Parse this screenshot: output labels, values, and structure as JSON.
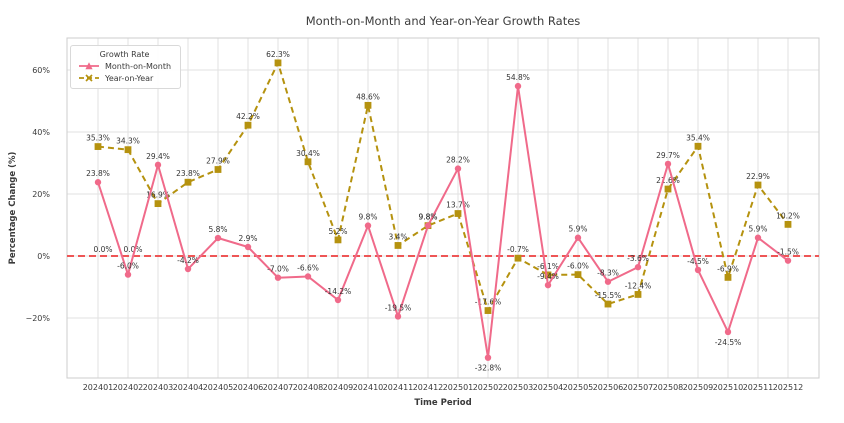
{
  "figure": {
    "title": "Month-on-Month and Year-on-Year Growth Rates"
  },
  "chart_data": {
    "type": "line",
    "title": "Month-on-Month and Year-on-Year Growth Rates",
    "xlabel": "Time Period",
    "ylabel": "Percentage Change (%)",
    "grid": true,
    "legend": {
      "title": "Growth Rate",
      "position": "upper-left",
      "entries": [
        "Month-on-Month",
        "Year-on-Year"
      ]
    },
    "categories": [
      "202401",
      "202402",
      "202403",
      "202404",
      "202405",
      "202406",
      "202407",
      "202408",
      "202409",
      "202410",
      "202411",
      "202412",
      "202501",
      "202502",
      "202503",
      "202504",
      "202505",
      "202506",
      "202507",
      "202508",
      "202509",
      "202510",
      "202511",
      "202512"
    ],
    "series": [
      {
        "name": "Year-on-Year",
        "color": "#b5920f",
        "linestyle": "dashed",
        "marker": "square",
        "values": [
          35.3,
          34.3,
          16.9,
          23.8,
          27.9,
          42.2,
          62.3,
          30.4,
          5.2,
          48.6,
          3.4,
          9.8,
          13.7,
          -17.6,
          -0.7,
          -6.1,
          -6.0,
          -15.5,
          -12.4,
          21.6,
          35.4,
          -6.9,
          22.9,
          10.2
        ],
        "labels": [
          "35.3%",
          "34.3%",
          "16.9%",
          "23.8%",
          "27.9%",
          "42.2%",
          "62.3%",
          "30.4%",
          "5.2%",
          "48.6%",
          "3.4%",
          "9.8%",
          "13.7%",
          "-17.6%",
          "-0.7%",
          "-6.1%",
          "-6.0%",
          "-15.5%",
          "-12.4%",
          "21.6%",
          "35.4%",
          "-6.9%",
          "22.9%",
          "10.2%"
        ]
      },
      {
        "name": "Month-on-Month",
        "color": "#f06a8a",
        "linestyle": "solid",
        "marker": "circle",
        "values": [
          23.8,
          -6.0,
          29.4,
          -4.2,
          5.8,
          2.9,
          -7.0,
          -6.6,
          -14.2,
          9.8,
          -19.5,
          9.8,
          28.2,
          -32.8,
          54.8,
          -9.4,
          5.9,
          -8.3,
          -3.6,
          29.7,
          -4.5,
          -24.5,
          5.9,
          -1.5
        ],
        "labels": [
          "23.8%",
          "-6.0%",
          "29.4%",
          "-4.2%",
          "5.8%",
          "2.9%",
          "-7.0%",
          "-6.6%",
          "-14.2%",
          "9.8%",
          "-19.5%",
          "9.8%",
          "28.2%",
          "-32.8%",
          "54.8%",
          "-9.4%",
          "5.9%",
          "-8.3%",
          "-3.6%",
          "29.7%",
          "-4.5%",
          "-24.5%",
          "5.9%",
          "-1.5%"
        ]
      }
    ],
    "yticks": {
      "values": [
        -20,
        0,
        20,
        40,
        60
      ],
      "labels": [
        "−20%",
        "0%",
        "20%",
        "40%",
        "60%"
      ]
    },
    "ylim": [
      -39,
      70
    ],
    "zero_line": {
      "value": 0,
      "color": "#ee5555",
      "style": "dashed",
      "annotations": [
        {
          "category": "202401",
          "label": "0.0%"
        },
        {
          "category": "202402",
          "label": "0.0%"
        }
      ]
    },
    "colors": {
      "grid": "#e2e2e2",
      "plot_border": "#cdcdcd",
      "tick_text": "#3a3a3a",
      "point_label_text": "#333333"
    }
  }
}
